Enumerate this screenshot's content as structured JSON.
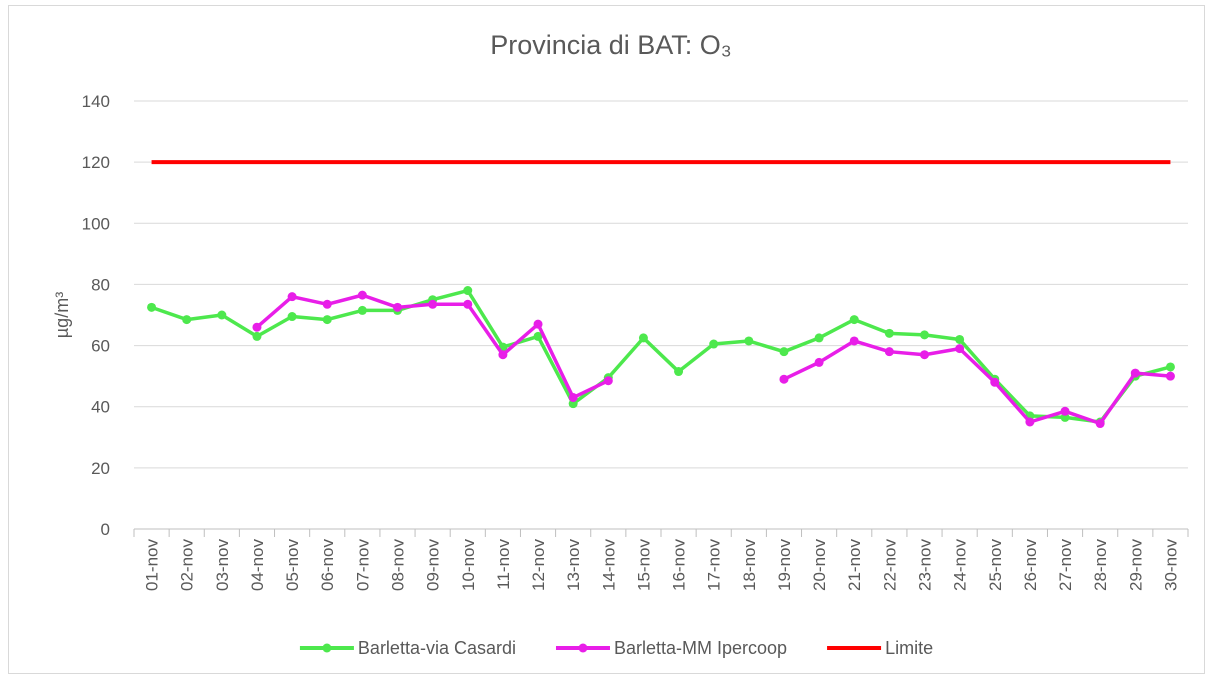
{
  "chart_data": {
    "type": "line",
    "title": "Provincia di BAT: O₃",
    "y_label": "µg/m³",
    "categories": [
      "01-nov",
      "02-nov",
      "03-nov",
      "04-nov",
      "05-nov",
      "06-nov",
      "07-nov",
      "08-nov",
      "09-nov",
      "10-nov",
      "11-nov",
      "12-nov",
      "13-nov",
      "14-nov",
      "15-nov",
      "16-nov",
      "17-nov",
      "18-nov",
      "19-nov",
      "20-nov",
      "21-nov",
      "22-nov",
      "23-nov",
      "24-nov",
      "25-nov",
      "26-nov",
      "27-nov",
      "28-nov",
      "29-nov",
      "30-nov"
    ],
    "series": [
      {
        "name": "Barletta-via Casardi",
        "color": "#4de84d",
        "markers": true,
        "values": [
          72.5,
          68.5,
          70,
          63,
          69.5,
          68.5,
          71.5,
          71.5,
          75,
          78,
          59.5,
          63,
          41,
          49.5,
          62.5,
          51.5,
          60.5,
          61.5,
          58,
          62.5,
          68.5,
          64,
          63.5,
          62,
          49,
          37,
          36.5,
          35,
          50,
          53
        ]
      },
      {
        "name": "Barletta-MM Ipercoop",
        "color": "#e81ee8",
        "markers": true,
        "values": [
          null,
          null,
          null,
          66,
          76,
          73.5,
          76.5,
          72.5,
          73.5,
          73.5,
          57,
          67,
          43,
          48.5,
          null,
          null,
          null,
          null,
          49,
          54.5,
          61.5,
          58,
          57,
          59,
          48,
          35,
          38.5,
          34.5,
          51,
          50
        ]
      },
      {
        "name": "Limite",
        "color": "#ff0000",
        "markers": false,
        "values": [
          120,
          120,
          120,
          120,
          120,
          120,
          120,
          120,
          120,
          120,
          120,
          120,
          120,
          120,
          120,
          120,
          120,
          120,
          120,
          120,
          120,
          120,
          120,
          120,
          120,
          120,
          120,
          120,
          120,
          120
        ]
      }
    ],
    "ylim": [
      0,
      140
    ],
    "yticks": [
      0,
      20,
      40,
      60,
      80,
      100,
      120,
      140
    ],
    "grid": true,
    "legend": "bottom"
  }
}
